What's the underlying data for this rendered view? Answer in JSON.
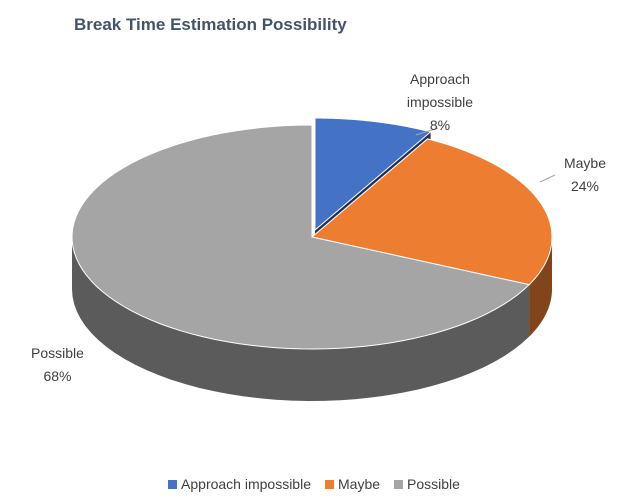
{
  "chart_data": {
    "type": "pie",
    "title": "Break Time Estimation Possibility",
    "categories": [
      "Approach impossible",
      "Maybe",
      "Possible"
    ],
    "values": [
      8,
      24,
      68
    ],
    "value_labels": [
      "8%",
      "24%",
      "68%"
    ],
    "colors": [
      "#4472c4",
      "#ed7d31",
      "#a5a5a5"
    ],
    "legend": "bottom"
  }
}
